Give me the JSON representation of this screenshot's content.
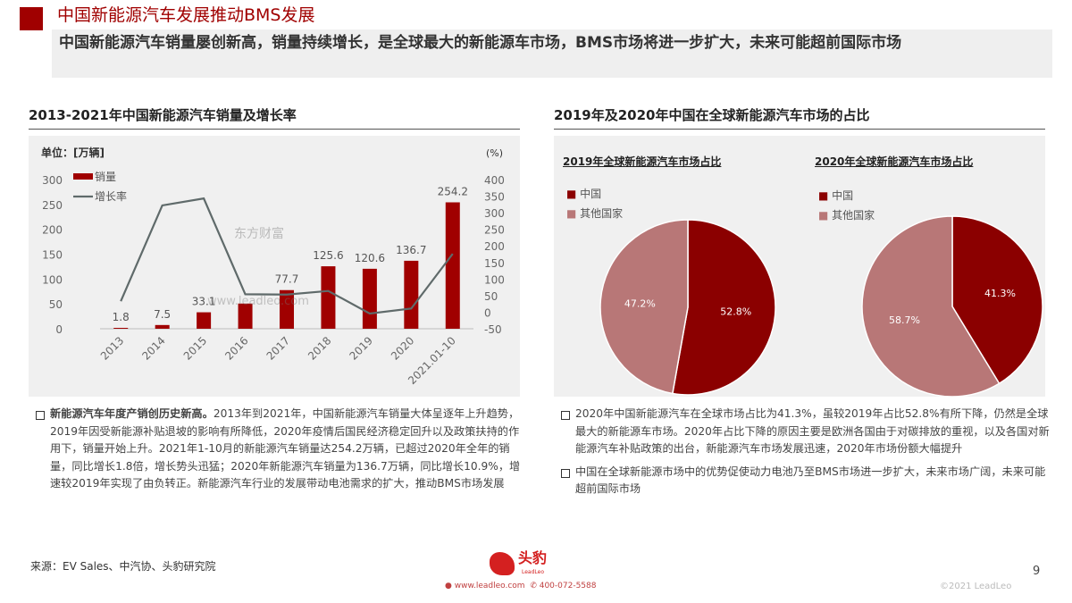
{
  "header": {
    "title": "中国新能源汽车发展推动BMS发展",
    "subtitle": "中国新能源汽车销量屡创新高，销量持续增长，是全球最大的新能源车市场，BMS市场将进一步扩大，未来可能超前国际市场"
  },
  "left": {
    "section_title": "2013-2021年中国新能源汽车销量及增长率",
    "bullet_bold": "新能源汽车年度产销创历史新高。",
    "bullet_text": "2013年到2021年，中国新能源汽车销量大体呈逐年上升趋势，2019年因受新能源补贴退坡的影响有所降低，2020年疫情后国民经济稳定回升以及政策扶持的作用下，销量开始上升。2021年1-10月的新能源汽车销量达254.2万辆，已超过2020年全年的销量，同比增长1.8倍，增长势头迅猛；2020年新能源汽车销量为136.7万辆，同比增长10.9%，增速较2019年实现了由负转正。新能源汽车行业的发展带动电池需求的扩大，推动BMS市场发展"
  },
  "right": {
    "section_title": "2019年及2020年中国在全球新能源汽车市场的占比",
    "bullets": [
      "2020年中国新能源汽车在全球市场占比为41.3%，虽较2019年占比52.8%有所下降，仍然是全球最大的新能源车市场。2020年占比下降的原因主要是欧洲各国由于对碳排放的重视，以及各国对新能源汽车补贴政策的出台，新能源汽车市场发展迅速，2020年市场份额大幅提升",
      "中国在全球新能源市场中的优势促使动力电池乃至BMS市场进一步扩大，未来市场广阔，未来可能超前国际市场"
    ]
  },
  "footer": {
    "source": "来源：EV Sales、中汽协、头豹研究院",
    "logo": "头豹",
    "logo_sub": "LeadLeo",
    "website": "www.leadleo.com",
    "phone": "400-072-5588",
    "page": "9",
    "copyright": "©2021 LeadLeo"
  },
  "watermark": {
    "cn": "东方财富",
    "url": "www.leadleo.com"
  },
  "colors": {
    "accent": "#a00000",
    "china": "#8b0000",
    "other": "#b87777",
    "line": "#5f6a6a"
  },
  "chart_data": [
    {
      "type": "bar",
      "title": "",
      "unit_left": "单位：[万辆]",
      "unit_right": "(%)",
      "categories": [
        "2013",
        "2014",
        "2015",
        "2016",
        "2017",
        "2018",
        "2019",
        "2020",
        "2021.01-10"
      ],
      "series": [
        {
          "name": "销量",
          "type": "bar",
          "axis": "left",
          "values": [
            1.8,
            7.5,
            33.1,
            50.7,
            77.7,
            125.6,
            120.6,
            136.7,
            254.2
          ],
          "labels": [
            "1.8",
            "7.5",
            "33.1",
            "50.7",
            "77.7",
            "125.6",
            "120.6",
            "136.7",
            "254.2"
          ]
        },
        {
          "name": "增长率",
          "type": "line",
          "axis": "right",
          "values": [
            33,
            322,
            343,
            54,
            53,
            64,
            -4,
            10.9,
            176
          ]
        }
      ],
      "ylim": [
        0,
        300
      ],
      "yticks": [
        "0",
        "50",
        "100",
        "150",
        "200",
        "250",
        "300"
      ],
      "y2lim": [
        -50,
        400
      ],
      "y2ticks": [
        "-50",
        "0",
        "50",
        "100",
        "150",
        "200",
        "250",
        "300",
        "350",
        "400"
      ],
      "legend": "top-left"
    },
    {
      "type": "pie",
      "title": "2019年全球新能源汽车市场占比",
      "labels": [
        "中国",
        "其他国家"
      ],
      "values": [
        52.8,
        47.2
      ],
      "value_labels": [
        "52.8%",
        "47.2%"
      ]
    },
    {
      "type": "pie",
      "title": "2020年全球新能源汽车市场占比",
      "labels": [
        "中国",
        "其他国家"
      ],
      "values": [
        41.3,
        58.7
      ],
      "value_labels": [
        "41.3%",
        "58.7%"
      ]
    }
  ]
}
